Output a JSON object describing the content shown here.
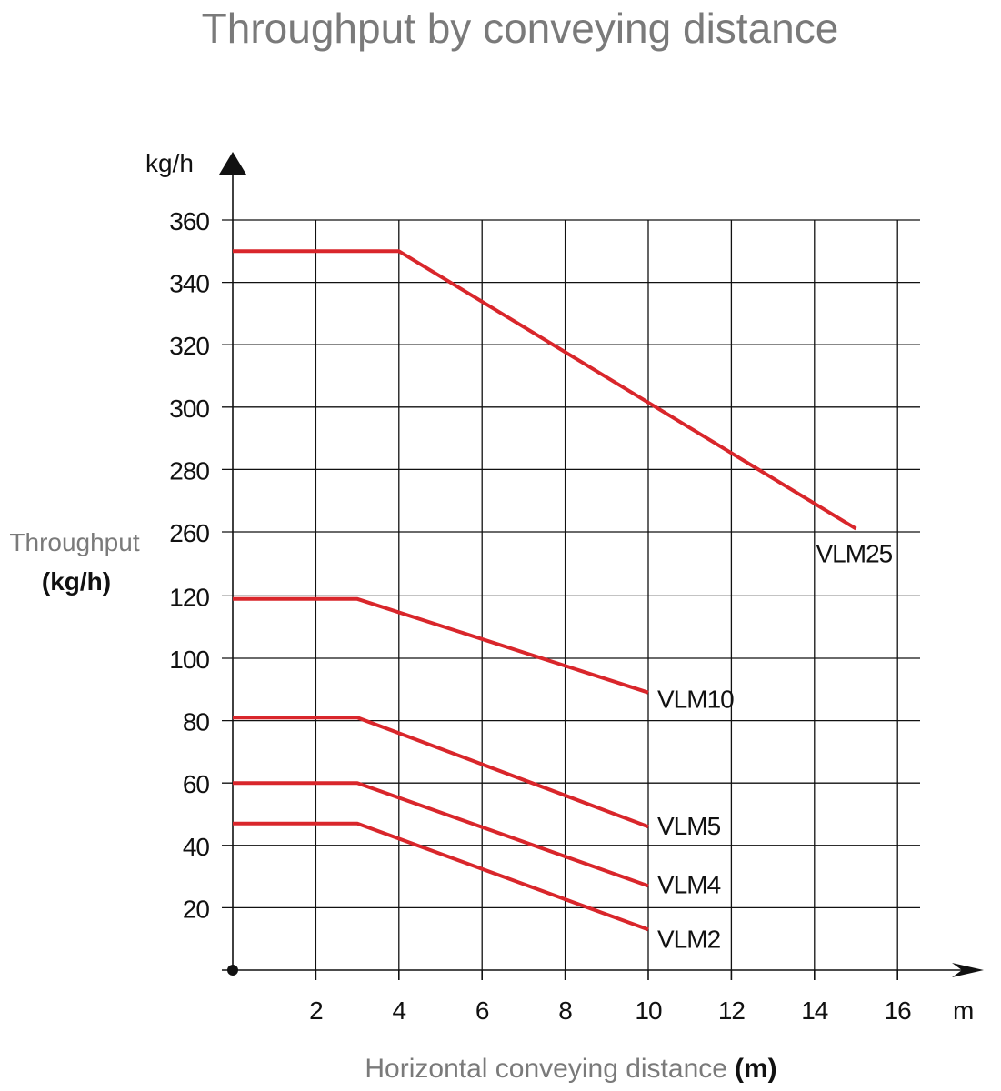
{
  "chart_data": {
    "type": "line",
    "title": "Throughput by conveying distance",
    "ylabel": "Throughput",
    "ylabel_unit": "(kg/h)",
    "y_unit": "kg/h",
    "xlabel": "Horizontal conveying distance",
    "xlabel_unit": "(m)",
    "x_unit": "m",
    "xlim": [
      0,
      16
    ],
    "x_ticks": [
      2,
      4,
      6,
      8,
      10,
      12,
      14,
      16
    ],
    "y_ticks": [
      20,
      40,
      60,
      80,
      100,
      120,
      260,
      280,
      300,
      320,
      340,
      360
    ],
    "y_axis_break": "between 120 and 260",
    "grid": true,
    "colors": {
      "series": "#d9262b",
      "grid": "#111111",
      "title": "#7a7a7a"
    },
    "series": [
      {
        "name": "VLM25",
        "x": [
          0,
          4,
          15
        ],
        "y": [
          350,
          350,
          261
        ]
      },
      {
        "name": "VLM10",
        "x": [
          0,
          3,
          10
        ],
        "y": [
          119,
          119,
          89
        ]
      },
      {
        "name": "VLM5",
        "x": [
          0,
          3,
          10
        ],
        "y": [
          81,
          81,
          46
        ]
      },
      {
        "name": "VLM4",
        "x": [
          0,
          3,
          10
        ],
        "y": [
          60,
          60,
          27
        ]
      },
      {
        "name": "VLM2",
        "x": [
          0,
          3,
          10
        ],
        "y": [
          47,
          47,
          13
        ]
      }
    ]
  }
}
